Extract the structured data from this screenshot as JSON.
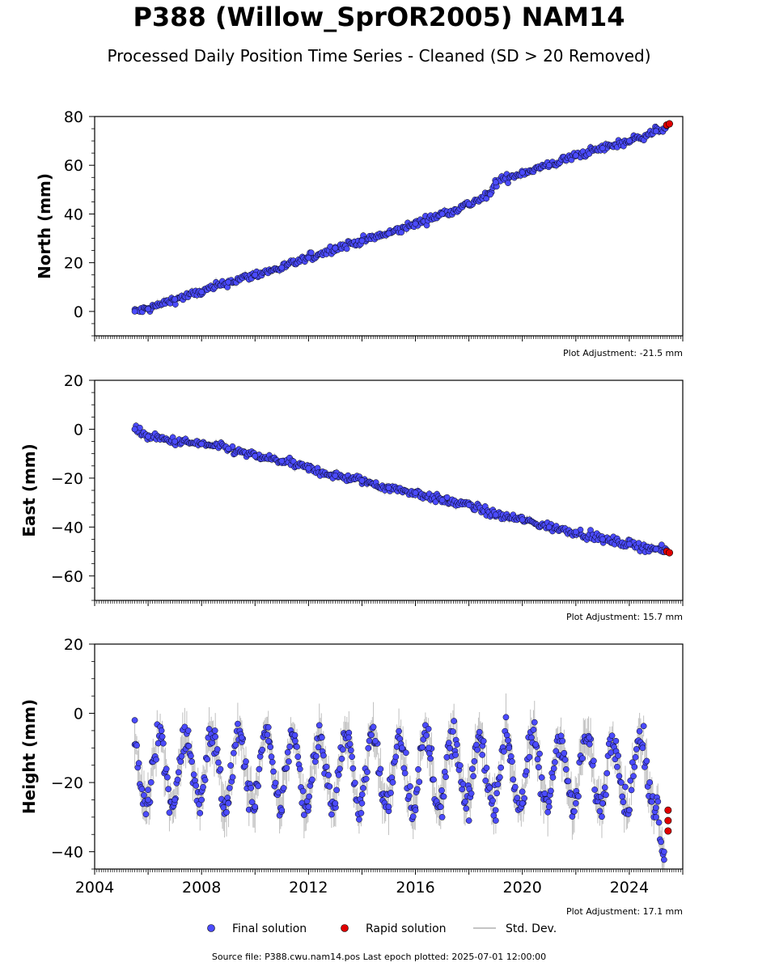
{
  "title": "P388 (Willow_SprOR2005) NAM14",
  "subtitle": "Processed Daily Position Time Series - Cleaned (SD > 20 Removed)",
  "footer": "Source file: P388.cwu.nam14.pos  Last epoch plotted: 2025-07-01 12:00:00",
  "colors": {
    "final": "#4b4bff",
    "rapid": "#e00000",
    "std_dev": "#b0b0b0",
    "marker_edge": "#000000"
  },
  "legend": [
    {
      "key": "final",
      "label": "Final solution"
    },
    {
      "key": "rapid",
      "label": "Rapid solution"
    },
    {
      "key": "std",
      "label": "Std. Dev."
    }
  ],
  "chart_data": [
    {
      "type": "scatter",
      "ylabel": "North (mm)",
      "xlim": [
        2004,
        2026
      ],
      "ylim": [
        -10,
        80
      ],
      "yticks": [
        0,
        20,
        40,
        60,
        80
      ],
      "yticklabels": [
        "0",
        "20",
        "40",
        "60",
        "80"
      ],
      "xticks_labeled": false,
      "adjustment": "Plot Adjustment: -21.5 mm",
      "series": [
        {
          "name": "Final solution",
          "x": [
            2005.5,
            2006.0,
            2007.0,
            2008.0,
            2009.0,
            2010.0,
            2011.0,
            2012.0,
            2013.0,
            2014.0,
            2015.0,
            2016.0,
            2017.0,
            2018.0,
            2018.8,
            2019.0,
            2020.0,
            2021.0,
            2022.0,
            2023.0,
            2024.0,
            2025.0,
            2025.4
          ],
          "y": [
            0,
            1,
            5,
            8,
            12,
            15,
            18,
            22,
            26,
            29,
            32,
            36,
            40,
            44,
            48,
            53,
            57,
            60,
            64,
            67,
            70,
            74,
            76
          ]
        },
        {
          "name": "Rapid solution",
          "x": [
            2025.4,
            2025.5
          ],
          "y": [
            76.5,
            77
          ]
        }
      ]
    },
    {
      "type": "scatter",
      "ylabel": "East (mm)",
      "xlim": [
        2004,
        2026
      ],
      "ylim": [
        -70,
        20
      ],
      "yticks": [
        -60,
        -40,
        -20,
        0,
        20
      ],
      "yticklabels": [
        "−60",
        "−40",
        "−20",
        "0",
        "20"
      ],
      "xticks_labeled": false,
      "adjustment": "Plot Adjustment: 15.7 mm",
      "series": [
        {
          "name": "Final solution",
          "x": [
            2005.5,
            2006.0,
            2007.0,
            2008.0,
            2009.0,
            2010.0,
            2011.0,
            2012.0,
            2013.0,
            2014.0,
            2015.0,
            2016.0,
            2017.0,
            2018.0,
            2019.0,
            2020.0,
            2021.0,
            2022.0,
            2023.0,
            2024.0,
            2025.0,
            2025.4
          ],
          "y": [
            0,
            -3,
            -5,
            -6,
            -8,
            -11,
            -13,
            -16,
            -19,
            -21,
            -24,
            -26,
            -29,
            -31,
            -35,
            -37,
            -40,
            -42,
            -45,
            -47,
            -49,
            -50
          ]
        },
        {
          "name": "Rapid solution",
          "x": [
            2025.4,
            2025.5
          ],
          "y": [
            -50,
            -50.5
          ]
        }
      ]
    },
    {
      "type": "scatter",
      "ylabel": "Height (mm)",
      "xlim": [
        2004,
        2026
      ],
      "ylim": [
        -45,
        20
      ],
      "yticks": [
        -40,
        -20,
        0,
        20
      ],
      "yticklabels": [
        "−40",
        "−20",
        "0",
        "20"
      ],
      "xticks": [
        2004,
        2008,
        2012,
        2016,
        2020,
        2024
      ],
      "xticklabels": [
        "2004",
        "2008",
        "2012",
        "2016",
        "2020",
        "2024"
      ],
      "xticks_labeled": true,
      "adjustment": "Plot Adjustment: 17.1 mm",
      "series": [
        {
          "name": "Final solution",
          "x": [
            2005.5,
            2006.0,
            2006.5,
            2007.0,
            2007.5,
            2008.0,
            2008.5,
            2009.0,
            2009.5,
            2010.0,
            2010.5,
            2011.0,
            2011.5,
            2012.0,
            2012.5,
            2013.0,
            2013.5,
            2014.0,
            2014.5,
            2015.0,
            2015.5,
            2016.0,
            2016.5,
            2017.0,
            2017.5,
            2018.0,
            2018.5,
            2019.0,
            2019.5,
            2020.0,
            2020.5,
            2021.0,
            2021.5,
            2022.0,
            2022.5,
            2023.0,
            2023.5,
            2024.0,
            2024.5,
            2025.0,
            2025.3
          ],
          "y": [
            -2,
            -25,
            -5,
            -25,
            -5,
            -25,
            -5,
            -26,
            -7,
            -27,
            -8,
            -28,
            -8,
            -27,
            -7,
            -26,
            -7,
            -26,
            -8,
            -27,
            -10,
            -28,
            -10,
            -30,
            -12,
            -31,
            -12,
            -28,
            -10,
            -26,
            -9,
            -27,
            -8,
            -26,
            -7,
            -26,
            -8,
            -28,
            -10,
            -30,
            -40
          ]
        },
        {
          "name": "Rapid solution",
          "x": [
            2025.45,
            2025.45,
            2025.45
          ],
          "y": [
            -28,
            -31,
            -34
          ]
        }
      ]
    }
  ]
}
